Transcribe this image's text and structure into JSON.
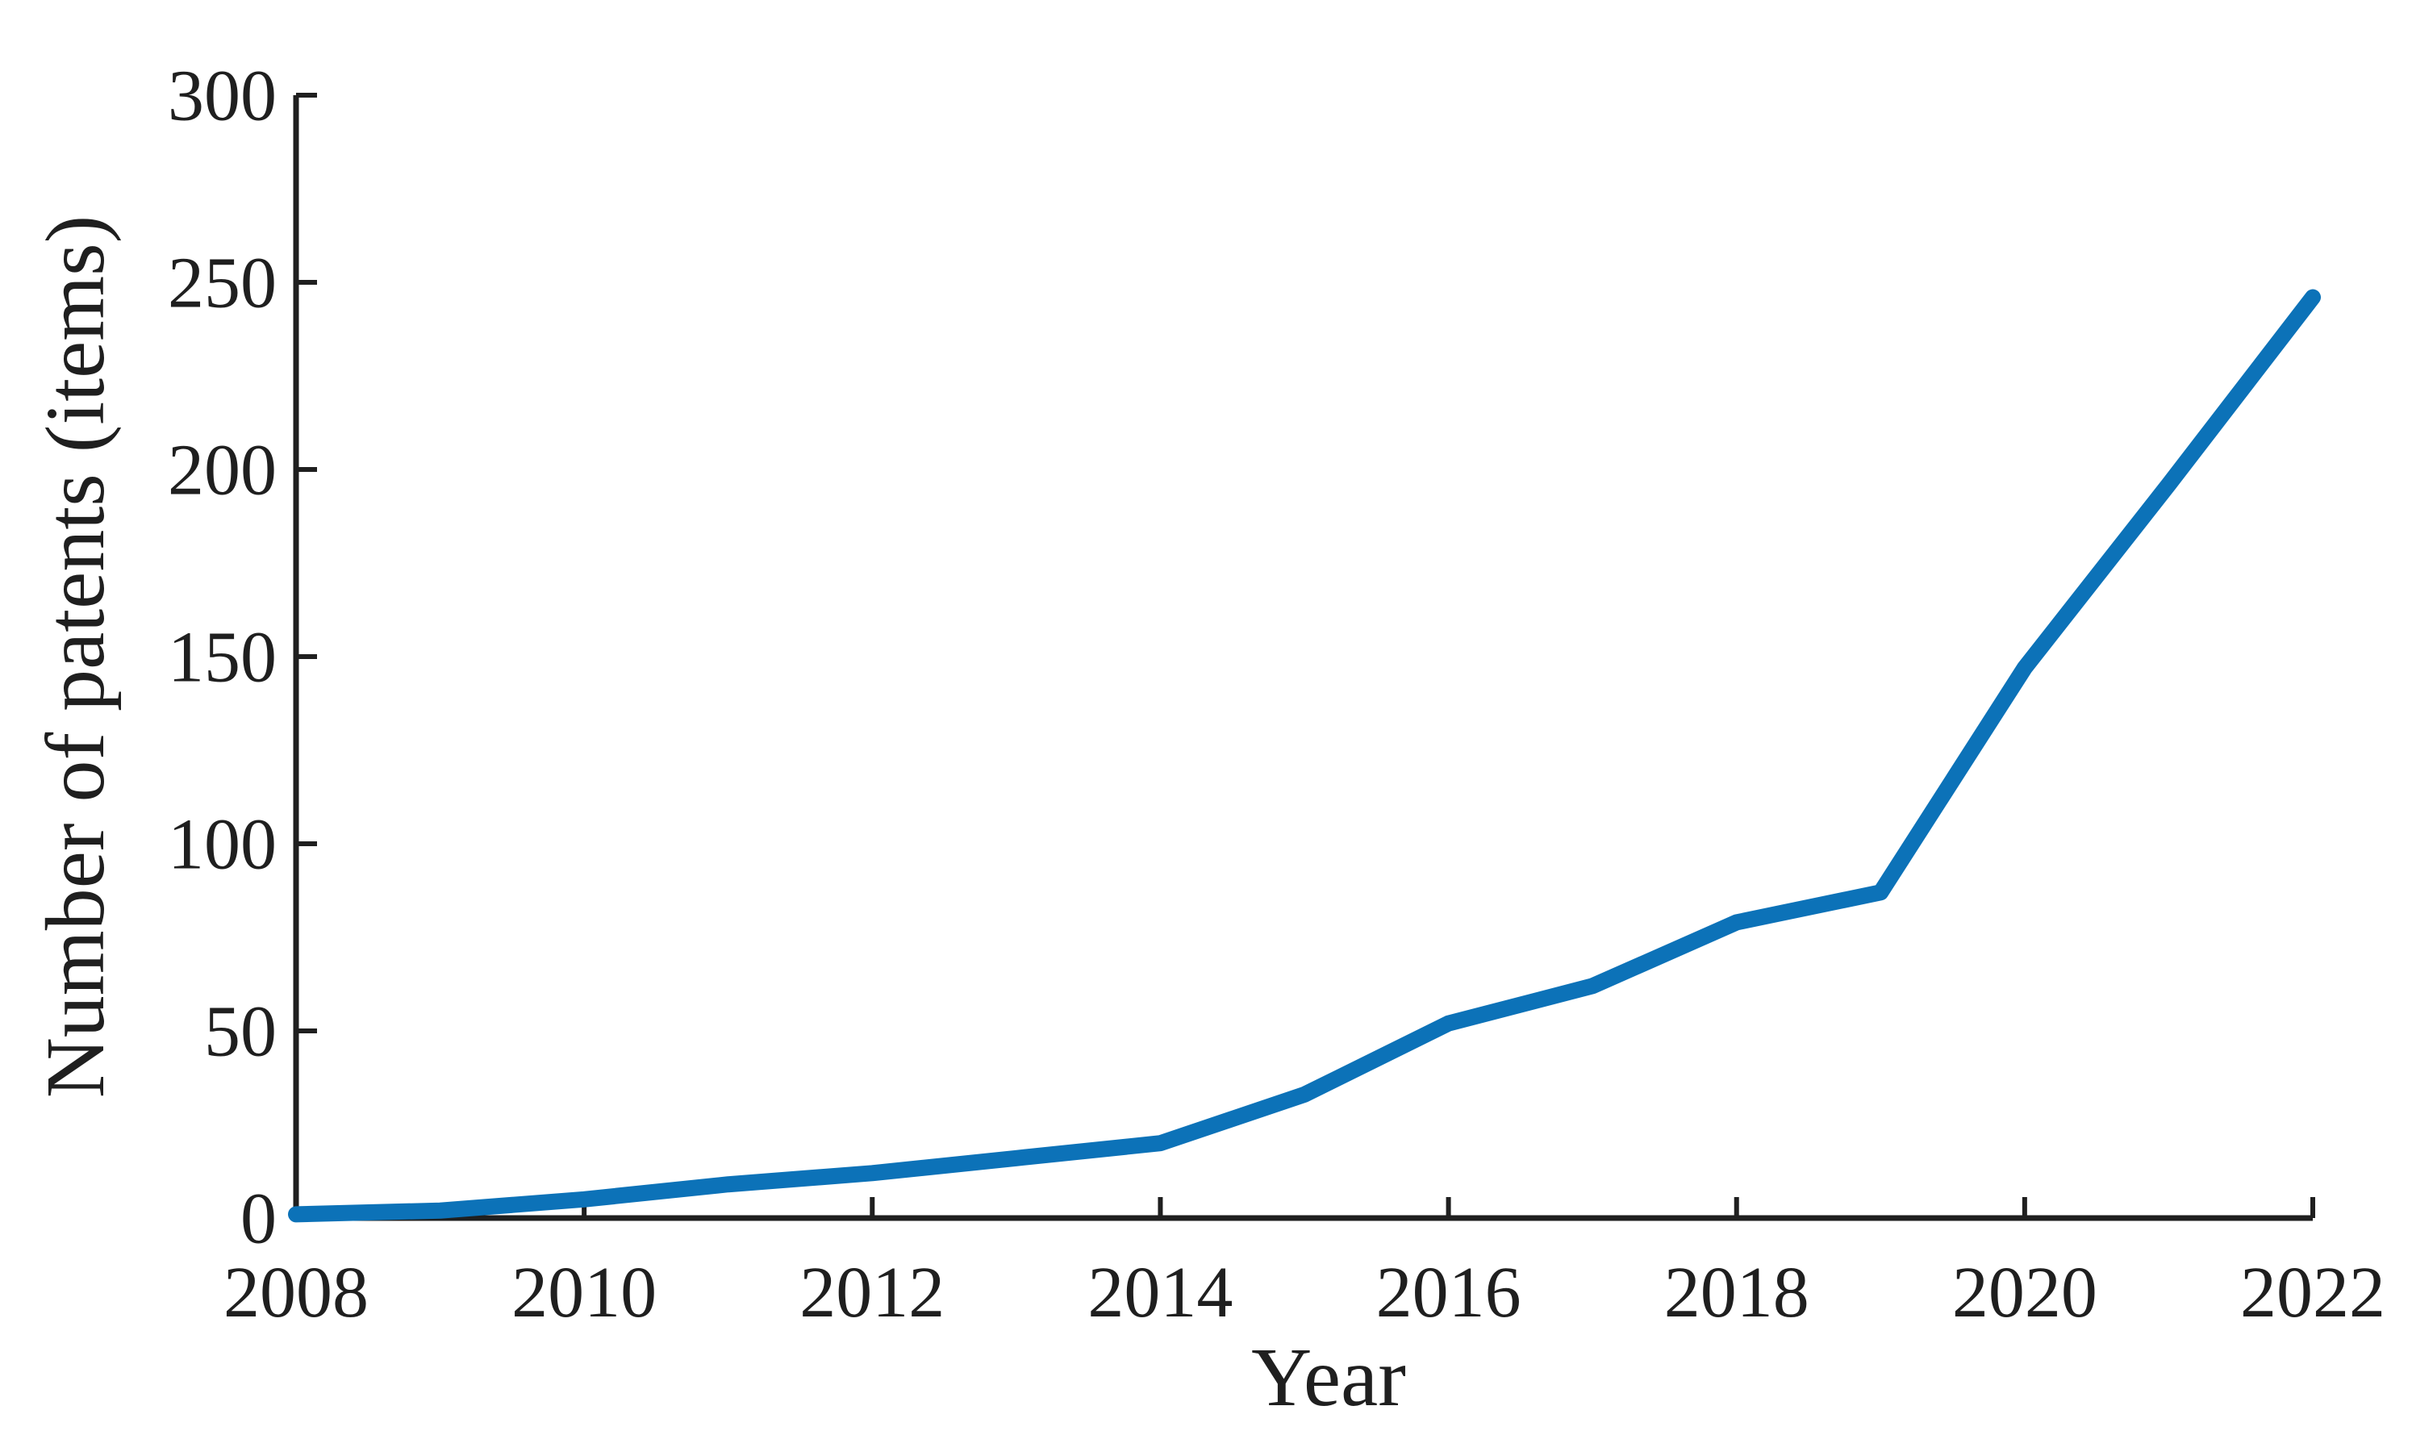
{
  "chart_data": {
    "type": "line",
    "title": "",
    "xlabel": "Year",
    "ylabel": "Number of patents (items)",
    "x": [
      2008,
      2009,
      2010,
      2011,
      2012,
      2013,
      2014,
      2015,
      2016,
      2017,
      2018,
      2019,
      2020,
      2021,
      2022
    ],
    "series": [
      {
        "name": "Number of patents",
        "values": [
          1,
          2,
          5,
          9,
          12,
          16,
          20,
          33,
          52,
          62,
          79,
          87,
          147,
          196,
          246
        ]
      }
    ],
    "xlim": [
      2008,
      2022
    ],
    "ylim": [
      0,
      300
    ],
    "xticks": [
      2008,
      2010,
      2012,
      2014,
      2016,
      2018,
      2020,
      2022
    ],
    "yticks": [
      0,
      50,
      100,
      150,
      200,
      250,
      300
    ],
    "grid": false,
    "legend": "none",
    "line_color": "#0c72b8",
    "axis_color": "#1f1f1f",
    "text_color": "#1f1f1f",
    "background": "#ffffff"
  }
}
